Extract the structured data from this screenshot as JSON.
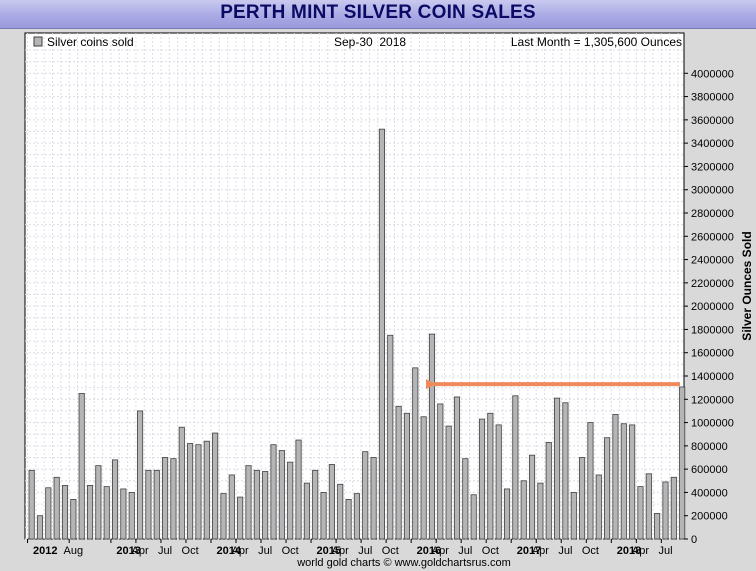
{
  "title": "PERTH MINT SILVER COIN SALES",
  "legend_label": "Silver coins sold",
  "date_label": "Sep-30  2018",
  "last_month_label": "Last Month = 1,305,600 Ounces",
  "ylabel": "Silver Ounces Sold",
  "footer": "world gold charts © www.goldchartsrus.com",
  "colors": {
    "bar_fill": "#b5b5b5",
    "bar_stroke": "#404040",
    "arrow": "#f08a5d",
    "title": "#0b0b66",
    "grid": "#dcdce6"
  },
  "chart_data": {
    "type": "bar",
    "series": [
      {
        "name": "Silver coins sold",
        "values": [
          590000,
          200000,
          440000,
          530000,
          460000,
          340000,
          1250000,
          460000,
          630000,
          450000,
          680000,
          430000,
          400000,
          1100000,
          590000,
          590000,
          700000,
          690000,
          960000,
          820000,
          810000,
          840000,
          910000,
          390000,
          550000,
          360000,
          630000,
          590000,
          580000,
          810000,
          760000,
          660000,
          850000,
          480000,
          590000,
          400000,
          640000,
          470000,
          340000,
          390000,
          750000,
          700000,
          3520000,
          1750000,
          1140000,
          1080000,
          1470000,
          1050000,
          1760000,
          1160000,
          970000,
          1220000,
          690000,
          380000,
          1030000,
          1080000,
          980000,
          430000,
          1230000,
          500000,
          720000,
          480000,
          830000,
          1210000,
          1170000,
          400000,
          700000,
          1000000,
          550000,
          870000,
          1070000,
          990000,
          980000,
          450000,
          560000,
          220000,
          490000,
          530000,
          1305600
        ]
      }
    ],
    "first_period": "2012-03",
    "last_period": "2018-09",
    "x_tick_labels": [
      {
        "label": "2012",
        "month_index": 0,
        "bold": true
      },
      {
        "label": "Aug",
        "month_index": 5,
        "bold": false
      },
      {
        "label": "2013",
        "month_index": 10,
        "bold": true
      },
      {
        "label": "Apr",
        "month_index": 13,
        "bold": false
      },
      {
        "label": "Jul",
        "month_index": 16,
        "bold": false
      },
      {
        "label": "Oct",
        "month_index": 19,
        "bold": false
      },
      {
        "label": "2014",
        "month_index": 22,
        "bold": true
      },
      {
        "label": "Apr",
        "month_index": 25,
        "bold": false
      },
      {
        "label": "Jul",
        "month_index": 28,
        "bold": false
      },
      {
        "label": "Oct",
        "month_index": 31,
        "bold": false
      },
      {
        "label": "2015",
        "month_index": 34,
        "bold": true
      },
      {
        "label": "Apr",
        "month_index": 37,
        "bold": false
      },
      {
        "label": "Jul",
        "month_index": 40,
        "bold": false
      },
      {
        "label": "Oct",
        "month_index": 43,
        "bold": false
      },
      {
        "label": "2016",
        "month_index": 46,
        "bold": true
      },
      {
        "label": "Apr",
        "month_index": 49,
        "bold": false
      },
      {
        "label": "Jul",
        "month_index": 52,
        "bold": false
      },
      {
        "label": "Oct",
        "month_index": 55,
        "bold": false
      },
      {
        "label": "2017",
        "month_index": 58,
        "bold": true
      },
      {
        "label": "Apr",
        "month_index": 61,
        "bold": false
      },
      {
        "label": "Jul",
        "month_index": 64,
        "bold": false
      },
      {
        "label": "Oct",
        "month_index": 67,
        "bold": false
      },
      {
        "label": "2018",
        "month_index": 70,
        "bold": true
      },
      {
        "label": "Apr",
        "month_index": 73,
        "bold": false
      },
      {
        "label": "Jul",
        "month_index": 76,
        "bold": false
      }
    ],
    "y_ticks": [
      0,
      200000,
      400000,
      600000,
      800000,
      1000000,
      1200000,
      1400000,
      1600000,
      1800000,
      2000000,
      2200000,
      2400000,
      2600000,
      2800000,
      3000000,
      3200000,
      3400000,
      3600000,
      3800000,
      4000000
    ],
    "ylim": [
      0,
      4200000
    ],
    "ylabel": "Silver Ounces Sold",
    "y_axis_side": "right",
    "grid": true,
    "legend_position": "top-left",
    "annotation": {
      "type": "arrow",
      "points_to_value": 1330000,
      "color": "#f08a5d"
    }
  }
}
